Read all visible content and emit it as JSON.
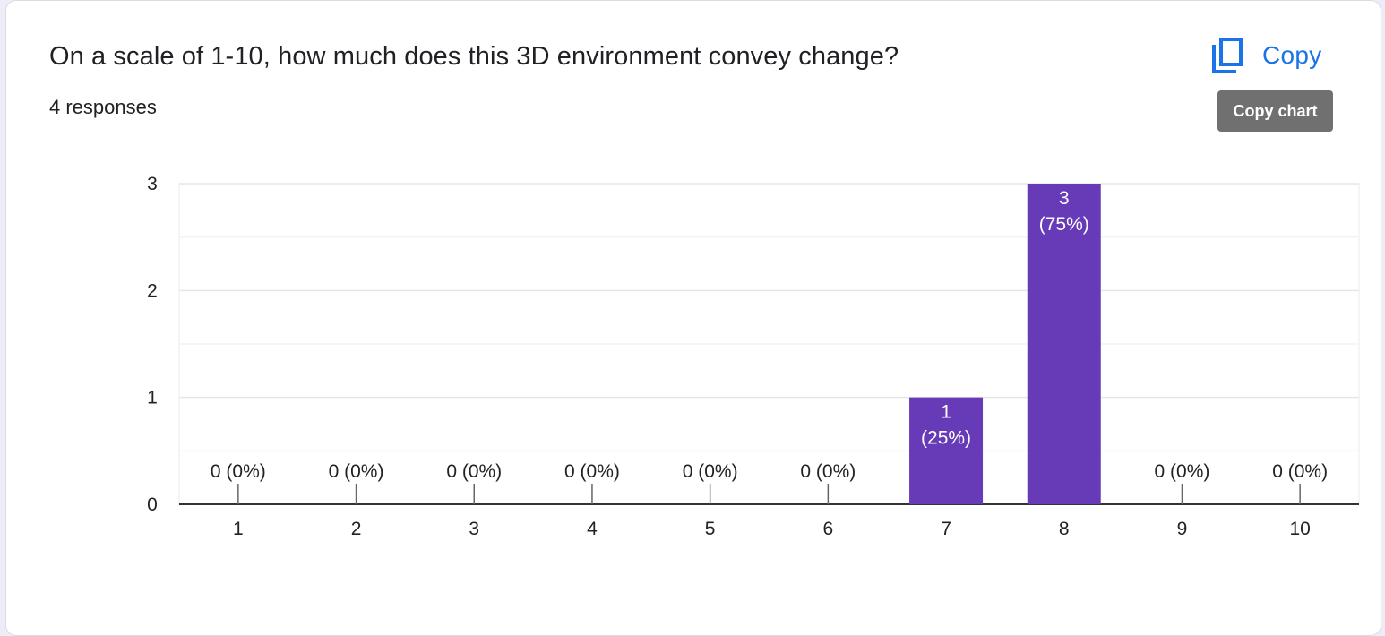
{
  "question": {
    "title": "On a scale of 1-10, how much does this 3D environment convey change?",
    "response_count": "4 responses"
  },
  "actions": {
    "copy_label": "Copy",
    "copy_icon": "copy-icon",
    "tooltip": "Copy chart"
  },
  "colors": {
    "bar": "#673ab7",
    "link": "#1a73e8",
    "grid": "#ebebeb",
    "axis": "#333333",
    "text": "#222222"
  },
  "chart_data": {
    "type": "bar",
    "categories": [
      "1",
      "2",
      "3",
      "4",
      "5",
      "6",
      "7",
      "8",
      "9",
      "10"
    ],
    "values": [
      0,
      0,
      0,
      0,
      0,
      0,
      1,
      3,
      0,
      0
    ],
    "data_labels": [
      "0 (0%)",
      "0 (0%)",
      "0 (0%)",
      "0 (0%)",
      "0 (0%)",
      "0 (0%)",
      "1 (25%)",
      "3 (75%)",
      "0 (0%)",
      "0 (0%)"
    ],
    "value_labels": [
      "0",
      "0",
      "0",
      "0",
      "0",
      "0",
      "1",
      "3",
      "0",
      "0"
    ],
    "percent_labels": [
      "(0%)",
      "(0%)",
      "(0%)",
      "(0%)",
      "(0%)",
      "(0%)",
      "(25%)",
      "(75%)",
      "(0%)",
      "(0%)"
    ],
    "yticks": [
      "0",
      "1",
      "2",
      "3"
    ],
    "ylim": [
      0,
      3
    ],
    "title": "",
    "xlabel": "",
    "ylabel": "",
    "grid": true
  }
}
